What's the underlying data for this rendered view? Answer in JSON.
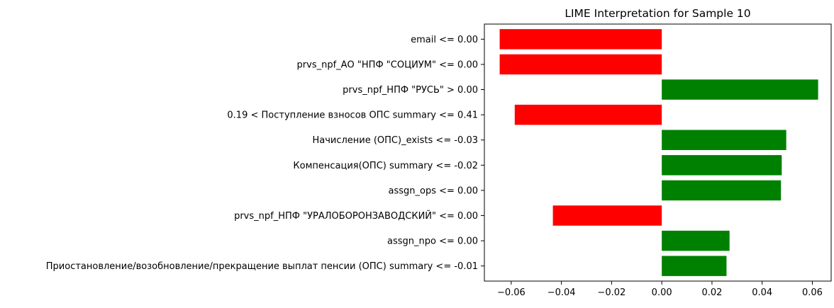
{
  "chart_data": {
    "type": "bar",
    "orientation": "horizontal",
    "title": "LIME Interpretation for Sample 10",
    "xlabel": "",
    "ylabel": "",
    "xlim": [
      -0.0707,
      0.0675
    ],
    "xticks": [
      -0.06,
      -0.04,
      -0.02,
      0.0,
      0.02,
      0.04,
      0.06
    ],
    "xtick_labels": [
      "−0.06",
      "−0.04",
      "−0.02",
      "0.00",
      "0.02",
      "0.04",
      "0.06"
    ],
    "grid": false,
    "legend": "none",
    "colors": {
      "positive": "#008000",
      "negative": "#ff0000"
    },
    "categories": [
      "email <= 0.00",
      "prvs_npf_АО \"НПФ \"СОЦИУМ\" <= 0.00",
      "prvs_npf_НПФ \"РУСЬ\" > 0.00",
      "0.19 < Поступление взносов ОПС summary <= 0.41",
      "Начисление (ОПС)_exists <= -0.03",
      "Компенсация(ОПС) summary <= -0.02",
      "assgn_ops <= 0.00",
      "prvs_npf_НПФ \"УРАЛОБОРОНЗАВОДСКИЙ\" <= 0.00",
      "assgn_npo <= 0.00",
      "Приостановление/возобновление/прекращение выплат пенсии (ОПС) summary <= -0.01"
    ],
    "values": [
      -0.0646,
      -0.0646,
      0.0623,
      -0.0586,
      0.0496,
      0.0478,
      0.0475,
      -0.0434,
      0.027,
      0.0258
    ]
  }
}
